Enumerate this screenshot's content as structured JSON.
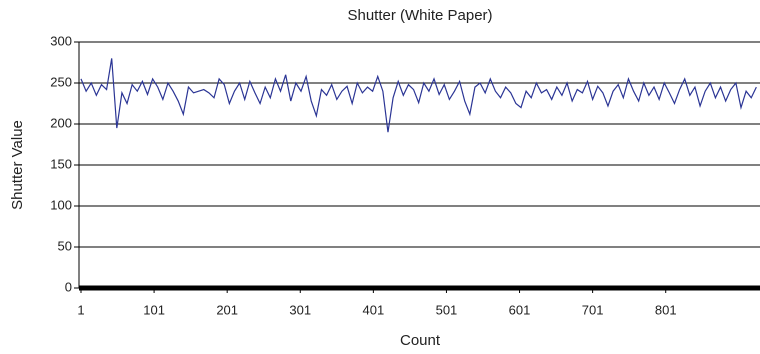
{
  "chart_data": {
    "type": "line",
    "title": "Shutter (White Paper)",
    "xlabel": "Count",
    "ylabel": "Shutter Value",
    "x": [
      1,
      8,
      15,
      22,
      29,
      36,
      43,
      50,
      57,
      64,
      71,
      78,
      85,
      92,
      99,
      106,
      113,
      120,
      127,
      134,
      141,
      148,
      155,
      162,
      169,
      176,
      183,
      190,
      197,
      204,
      211,
      218,
      225,
      232,
      239,
      246,
      253,
      260,
      267,
      274,
      281,
      288,
      295,
      302,
      309,
      316,
      323,
      330,
      337,
      344,
      351,
      358,
      365,
      372,
      379,
      386,
      393,
      400,
      407,
      414,
      421,
      428,
      435,
      442,
      449,
      456,
      463,
      470,
      477,
      484,
      491,
      498,
      505,
      512,
      519,
      526,
      533,
      540,
      547,
      554,
      561,
      568,
      575,
      582,
      589,
      596,
      603,
      610,
      617,
      624,
      631,
      638,
      645,
      652,
      659,
      666,
      673,
      680,
      687,
      694,
      701,
      708,
      715,
      722,
      729,
      736,
      743,
      750,
      757,
      764,
      771,
      778,
      785,
      792,
      799,
      806,
      813,
      820,
      827,
      834,
      841,
      848,
      855,
      862,
      869,
      876,
      883,
      890,
      897,
      904,
      911,
      918,
      925
    ],
    "values": [
      255,
      240,
      250,
      235,
      248,
      242,
      280,
      195,
      238,
      225,
      248,
      240,
      252,
      236,
      255,
      245,
      230,
      250,
      240,
      228,
      212,
      245,
      238,
      240,
      242,
      238,
      232,
      255,
      248,
      225,
      240,
      250,
      230,
      252,
      238,
      225,
      245,
      232,
      255,
      240,
      260,
      228,
      250,
      240,
      258,
      228,
      210,
      242,
      235,
      248,
      230,
      240,
      246,
      225,
      250,
      238,
      245,
      240,
      258,
      240,
      190,
      232,
      252,
      235,
      248,
      242,
      226,
      250,
      240,
      255,
      236,
      248,
      230,
      240,
      252,
      228,
      212,
      245,
      250,
      238,
      255,
      240,
      232,
      245,
      238,
      225,
      220,
      240,
      232,
      250,
      238,
      242,
      230,
      245,
      235,
      250,
      228,
      242,
      238,
      252,
      230,
      246,
      238,
      222,
      240,
      248,
      232,
      255,
      240,
      228,
      250,
      235,
      245,
      230,
      250,
      238,
      225,
      242,
      255,
      235,
      245,
      222,
      240,
      250,
      232,
      245,
      228,
      242,
      250,
      220,
      240,
      232,
      245
    ],
    "color": "#2b3595",
    "xlim": [
      1,
      930
    ],
    "xticks": [
      1,
      101,
      201,
      301,
      401,
      501,
      601,
      701,
      801
    ],
    "ylim": [
      0,
      300
    ],
    "yticks": [
      0,
      50,
      100,
      150,
      200,
      250,
      300
    ],
    "grid": true
  }
}
